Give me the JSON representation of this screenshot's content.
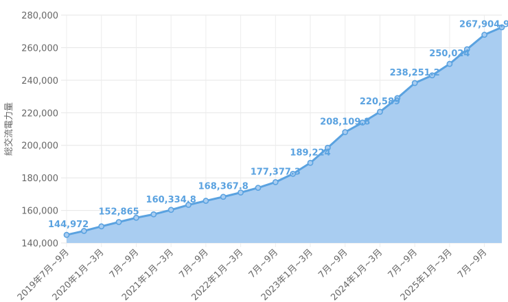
{
  "chart_data": {
    "type": "area",
    "ylabel": "総交流電力量",
    "ylim": [
      140000,
      280000
    ],
    "yticks": [
      "140,000",
      "160,000",
      "180,000",
      "200,000",
      "220,000",
      "240,000",
      "260,000",
      "280,000"
    ],
    "ytick_values": [
      140000,
      160000,
      180000,
      200000,
      220000,
      240000,
      260000,
      280000
    ],
    "grid": true,
    "colors": {
      "line": "#5aa2e0",
      "fill": "#a9cdf1",
      "point": "#a9cdf1",
      "label": "#5aa2e0"
    },
    "x": [
      "2019年7月~9月",
      "10月~12月",
      "2020年1月~3月",
      "4月~6月",
      "7月~9月",
      "10月~12月",
      "2021年1月~3月",
      "4月~6月",
      "7月~9月",
      "10月~12月",
      "2022年1月~3月",
      "4月~6月",
      "7月~9月",
      "10月~12月",
      "2023年1月~3月",
      "4月~6月",
      "7月~9月",
      "10月~12月",
      "2024年1月~3月",
      "4月~6月",
      "7月~9月",
      "10月~12月",
      "2025年1月~3月",
      "4月~6月",
      "7月~9月",
      "10月~12月"
    ],
    "xtick_labels": [
      {
        "index": 0,
        "text": "2019年7月~9月"
      },
      {
        "index": 2,
        "text": "2020年1月~3月"
      },
      {
        "index": 4,
        "text": "7月~9月"
      },
      {
        "index": 6,
        "text": "2021年1月~3月"
      },
      {
        "index": 8,
        "text": "7月~9月"
      },
      {
        "index": 10,
        "text": "2022年1月~3月"
      },
      {
        "index": 12,
        "text": "7月~9月"
      },
      {
        "index": 14,
        "text": "2023年1月~3月"
      },
      {
        "index": 16,
        "text": "7月~9月"
      },
      {
        "index": 18,
        "text": "2024年1月~3月"
      },
      {
        "index": 20,
        "text": "7月~9月"
      },
      {
        "index": 22,
        "text": "2025年1月~3月"
      },
      {
        "index": 24,
        "text": "7月~9月"
      }
    ],
    "values": [
      144972,
      147400,
      150200,
      152865,
      155500,
      157600,
      160334.8,
      163400,
      165900,
      168367.8,
      171000,
      173900,
      177377.3,
      182500,
      189224,
      198500,
      208109.8,
      214000,
      220589,
      229000,
      238251.2,
      243000,
      250024,
      259000,
      267904.9,
      272500
    ],
    "data_labels": [
      {
        "index": 0,
        "text": "144,972"
      },
      {
        "index": 3,
        "text": "152,865"
      },
      {
        "index": 6,
        "text": "160,334.8"
      },
      {
        "index": 9,
        "text": "168,367.8"
      },
      {
        "index": 12,
        "text": "177,377.3"
      },
      {
        "index": 14,
        "text": "189,224"
      },
      {
        "index": 16,
        "text": "208,109.8"
      },
      {
        "index": 18,
        "text": "220,589"
      },
      {
        "index": 20,
        "text": "238,251.2"
      },
      {
        "index": 22,
        "text": "250,024"
      },
      {
        "index": 24,
        "text": "267,904.9"
      }
    ]
  }
}
